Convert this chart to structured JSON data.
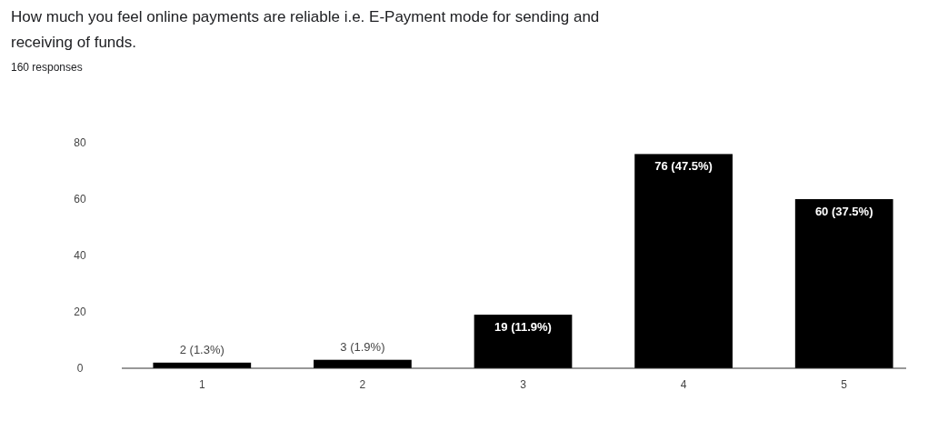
{
  "chart_data": {
    "type": "bar",
    "title": "How much you feel online payments are reliable i.e. E-Payment mode for sending and receiving of funds.",
    "subtitle": "160 responses",
    "categories": [
      "1",
      "2",
      "3",
      "4",
      "5"
    ],
    "values": [
      2,
      3,
      19,
      76,
      60
    ],
    "value_labels": [
      "2 (1.3%)",
      "3 (1.9%)",
      "19 (11.9%)",
      "76 (47.5%)",
      "60 (37.5%)"
    ],
    "color": "#000000",
    "ylim": [
      0,
      80
    ],
    "yticks": [
      0,
      20,
      40,
      60,
      80
    ],
    "grid": false
  }
}
